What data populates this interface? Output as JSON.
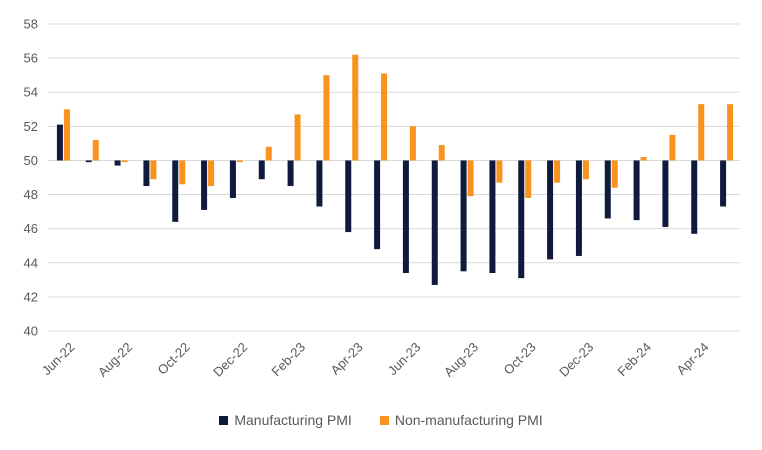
{
  "chart_data": {
    "type": "bar",
    "title": "",
    "xlabel": "",
    "ylabel": "",
    "ylim": [
      40,
      58
    ],
    "yticks": [
      40,
      42,
      44,
      46,
      48,
      50,
      52,
      54,
      56,
      58
    ],
    "baseline": 50,
    "grid": true,
    "legend_position": "bottom",
    "categories": [
      "Jun-22",
      "Jul-22",
      "Aug-22",
      "Sep-22",
      "Oct-22",
      "Nov-22",
      "Dec-22",
      "Jan-23",
      "Feb-23",
      "Mar-23",
      "Apr-23",
      "May-23",
      "Jun-23",
      "Jul-23",
      "Aug-23",
      "Sep-23",
      "Oct-23",
      "Nov-23",
      "Dec-23",
      "Jan-24",
      "Feb-24",
      "Mar-24",
      "Apr-24",
      "May-24"
    ],
    "tick_labels": [
      "Jun-22",
      "Aug-22",
      "Oct-22",
      "Dec-22",
      "Feb-23",
      "Apr-23",
      "Jun-23",
      "Aug-23",
      "Oct-23",
      "Dec-23",
      "Feb-24",
      "Apr-24"
    ],
    "series": [
      {
        "name": "Manufacturing PMI",
        "color": "#0f1a3d",
        "values": [
          52.1,
          49.9,
          49.7,
          48.5,
          46.4,
          47.1,
          47.8,
          48.9,
          48.5,
          47.3,
          45.8,
          44.8,
          43.4,
          42.7,
          43.5,
          43.4,
          43.1,
          44.2,
          44.4,
          46.6,
          46.5,
          46.1,
          45.7,
          47.3
        ]
      },
      {
        "name": "Non-manufacturing PMI",
        "color": "#f7931e",
        "values": [
          53.0,
          51.2,
          49.9,
          48.9,
          48.6,
          48.5,
          49.9,
          50.8,
          52.7,
          55.0,
          56.2,
          55.1,
          52.0,
          50.9,
          47.9,
          48.7,
          47.8,
          48.7,
          48.9,
          48.4,
          50.2,
          51.5,
          53.3,
          53.3
        ]
      }
    ]
  }
}
